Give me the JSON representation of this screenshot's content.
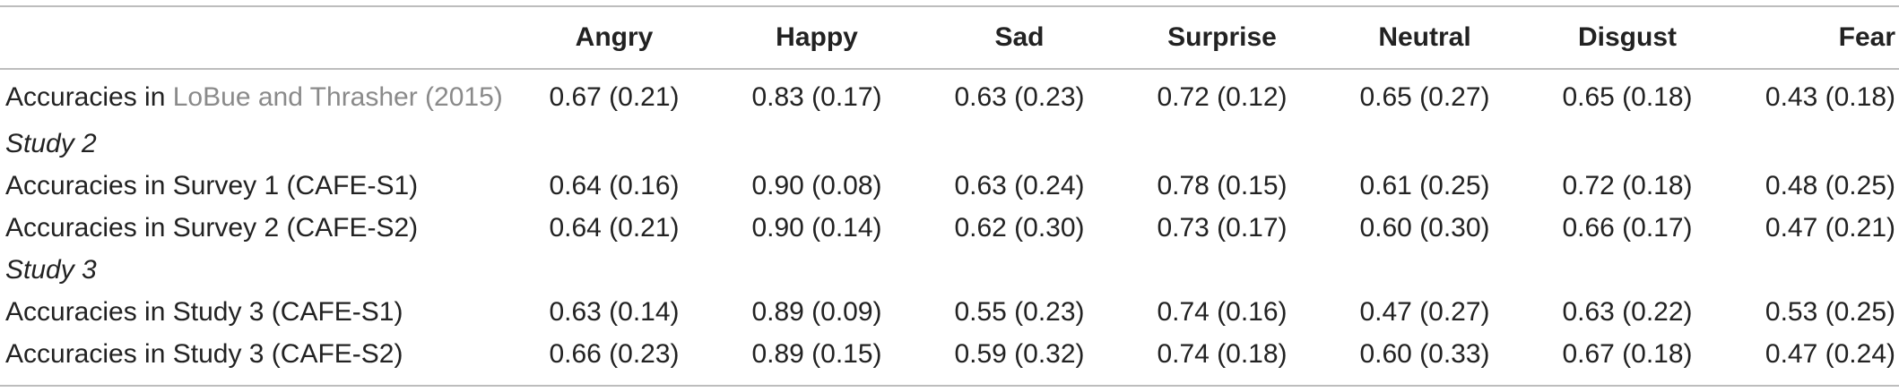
{
  "headers": [
    "",
    "Angry",
    "Happy",
    "Sad",
    "Surprise",
    "Neutral",
    "Disgust",
    "Fear"
  ],
  "row_lobue": {
    "prefix": "Accuracies in ",
    "citation": "LoBue and Thrasher (2015)",
    "values": [
      "0.67 (0.21)",
      "0.83 (0.17)",
      "0.63 (0.23)",
      "0.72 (0.12)",
      "0.65 (0.27)",
      "0.65 (0.18)",
      "0.43 (0.18)"
    ]
  },
  "sections": [
    {
      "title": "Study 2",
      "rows": [
        {
          "label": "Accuracies in Survey 1 (CAFE-S1)",
          "values": [
            "0.64 (0.16)",
            "0.90 (0.08)",
            "0.63 (0.24)",
            "0.78 (0.15)",
            "0.61 (0.25)",
            "0.72 (0.18)",
            "0.48 (0.25)"
          ]
        },
        {
          "label": "Accuracies in Survey 2 (CAFE-S2)",
          "values": [
            "0.64 (0.21)",
            "0.90 (0.14)",
            "0.62 (0.30)",
            "0.73 (0.17)",
            "0.60 (0.30)",
            "0.66 (0.17)",
            "0.47 (0.21)"
          ]
        }
      ]
    },
    {
      "title": "Study 3",
      "rows": [
        {
          "label": "Accuracies in Study 3 (CAFE-S1)",
          "values": [
            "0.63 (0.14)",
            "0.89 (0.09)",
            "0.55 (0.23)",
            "0.74 (0.16)",
            "0.47 (0.27)",
            "0.63 (0.22)",
            "0.53 (0.25)"
          ]
        },
        {
          "label": "Accuracies in Study 3 (CAFE-S2)",
          "values": [
            "0.66 (0.23)",
            "0.89 (0.15)",
            "0.59 (0.32)",
            "0.74 (0.18)",
            "0.60 (0.33)",
            "0.67 (0.18)",
            "0.47 (0.24)"
          ]
        }
      ]
    }
  ]
}
